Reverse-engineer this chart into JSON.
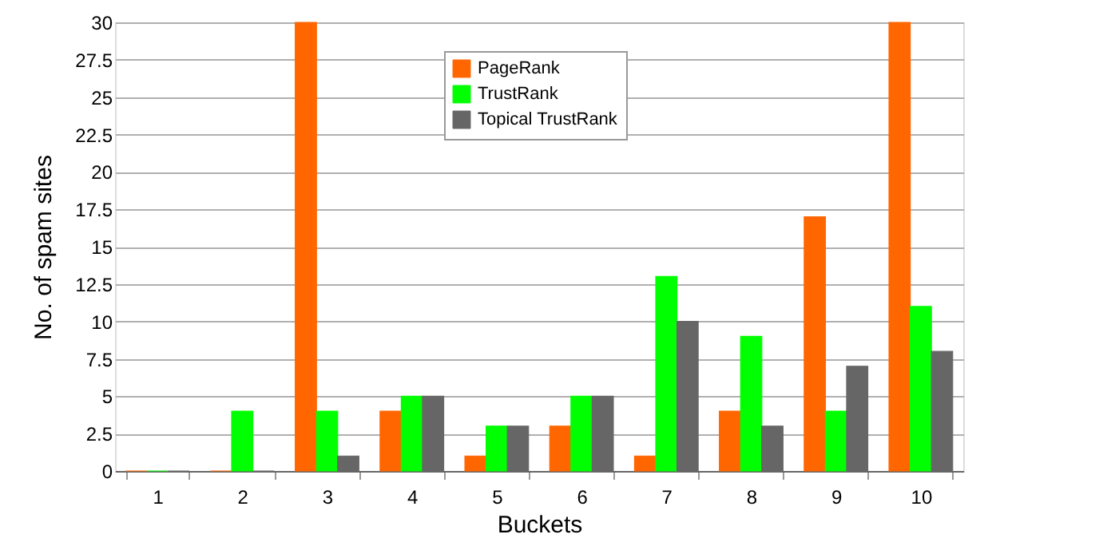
{
  "chart_data": {
    "type": "bar",
    "xlabel": "Buckets",
    "ylabel": "No. of spam sites",
    "categories": [
      "1",
      "2",
      "3",
      "4",
      "5",
      "6",
      "7",
      "8",
      "9",
      "10"
    ],
    "series": [
      {
        "name": "PageRank",
        "color": "#ff6600",
        "values": [
          0,
          0,
          30,
          4,
          1,
          3,
          1,
          4,
          17,
          30
        ]
      },
      {
        "name": "TrustRank",
        "color": "#00ff00",
        "values": [
          0,
          4,
          4,
          5,
          3,
          5,
          13,
          9,
          4,
          11
        ]
      },
      {
        "name": "Topical TrustRank",
        "color": "#666666",
        "values": [
          0,
          0,
          1,
          5,
          3,
          5,
          10,
          3,
          7,
          8
        ]
      }
    ],
    "ylim": [
      0,
      30
    ],
    "yticks": [
      0,
      2.5,
      5,
      7.5,
      10,
      12.5,
      15,
      17.5,
      20,
      22.5,
      25,
      27.5,
      30
    ],
    "grid": "y",
    "legend": "top"
  }
}
